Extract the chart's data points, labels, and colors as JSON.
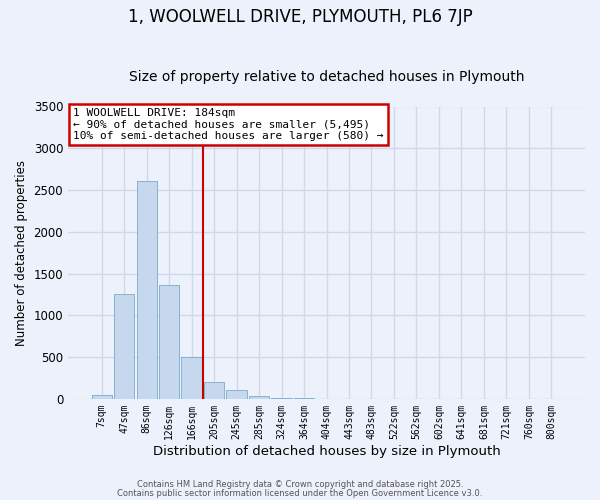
{
  "title": "1, WOOLWELL DRIVE, PLYMOUTH, PL6 7JP",
  "subtitle": "Size of property relative to detached houses in Plymouth",
  "xlabel": "Distribution of detached houses by size in Plymouth",
  "ylabel": "Number of detached properties",
  "bar_labels": [
    "7sqm",
    "47sqm",
    "86sqm",
    "126sqm",
    "166sqm",
    "205sqm",
    "245sqm",
    "285sqm",
    "324sqm",
    "364sqm",
    "404sqm",
    "443sqm",
    "483sqm",
    "522sqm",
    "562sqm",
    "602sqm",
    "641sqm",
    "681sqm",
    "721sqm",
    "760sqm",
    "800sqm"
  ],
  "bar_values": [
    50,
    1260,
    2610,
    1360,
    500,
    205,
    110,
    30,
    10,
    5,
    3,
    0,
    0,
    0,
    0,
    0,
    0,
    0,
    0,
    0,
    0
  ],
  "bar_color": "#c5d8ed",
  "bar_edge_color": "#7aaac8",
  "vline_x": 4.5,
  "vline_color": "#cc0000",
  "ylim": [
    0,
    3500
  ],
  "yticks": [
    0,
    500,
    1000,
    1500,
    2000,
    2500,
    3000,
    3500
  ],
  "annotation_text": "1 WOOLWELL DRIVE: 184sqm\n← 90% of detached houses are smaller (5,495)\n10% of semi-detached houses are larger (580) →",
  "annotation_box_color": "#ffffff",
  "annotation_box_edge": "#cc0000",
  "bg_color": "#edf1fb",
  "footnote1": "Contains HM Land Registry data © Crown copyright and database right 2025.",
  "footnote2": "Contains public sector information licensed under the Open Government Licence v3.0.",
  "title_fontsize": 12,
  "subtitle_fontsize": 10,
  "grid_color": "#d0d8e8"
}
